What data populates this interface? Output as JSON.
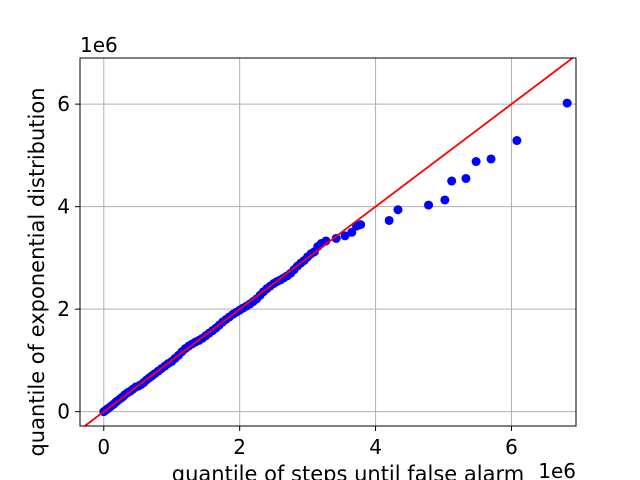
{
  "chart_data": {
    "type": "scatter",
    "title": "",
    "xlabel": "quantile of steps until false alarm",
    "ylabel": "quantile of exponential distribution",
    "x_offset_text": "1e6",
    "y_offset_text": "1e6",
    "xlim": [
      -0.35,
      6.95
    ],
    "ylim": [
      -0.28,
      6.9
    ],
    "x_ticks": [
      0,
      2,
      4,
      6
    ],
    "y_ticks": [
      0,
      2,
      4,
      6
    ],
    "x_tick_labels": [
      "0",
      "2",
      "4",
      "6"
    ],
    "y_tick_labels": [
      "0",
      "2",
      "4",
      "6"
    ],
    "scale_note": "values in units of 1e6",
    "grid": true,
    "point_color": "#0000ff",
    "line_color": "#ff0000",
    "series": [
      {
        "kind": "scatter",
        "points": [
          [
            0.0,
            0.0
          ],
          [
            0.03,
            0.03
          ],
          [
            0.06,
            0.06
          ],
          [
            0.09,
            0.09
          ],
          [
            0.12,
            0.12
          ],
          [
            0.15,
            0.15
          ],
          [
            0.18,
            0.19
          ],
          [
            0.21,
            0.22
          ],
          [
            0.25,
            0.26
          ],
          [
            0.28,
            0.29
          ],
          [
            0.31,
            0.33
          ],
          [
            0.35,
            0.37
          ],
          [
            0.39,
            0.4
          ],
          [
            0.43,
            0.44
          ],
          [
            0.47,
            0.48
          ],
          [
            0.51,
            0.5
          ],
          [
            0.55,
            0.53
          ],
          [
            0.59,
            0.57
          ],
          [
            0.63,
            0.62
          ],
          [
            0.67,
            0.66
          ],
          [
            0.71,
            0.7
          ],
          [
            0.75,
            0.74
          ],
          [
            0.8,
            0.79
          ],
          [
            0.85,
            0.84
          ],
          [
            0.9,
            0.89
          ],
          [
            0.95,
            0.94
          ],
          [
            1.0,
            0.98
          ],
          [
            1.05,
            1.04
          ],
          [
            1.1,
            1.1
          ],
          [
            1.15,
            1.17
          ],
          [
            1.2,
            1.23
          ],
          [
            1.25,
            1.28
          ],
          [
            1.3,
            1.32
          ],
          [
            1.35,
            1.36
          ],
          [
            1.4,
            1.39
          ],
          [
            1.45,
            1.43
          ],
          [
            1.5,
            1.48
          ],
          [
            1.55,
            1.53
          ],
          [
            1.6,
            1.58
          ],
          [
            1.65,
            1.63
          ],
          [
            1.7,
            1.69
          ],
          [
            1.75,
            1.75
          ],
          [
            1.8,
            1.8
          ],
          [
            1.85,
            1.85
          ],
          [
            1.9,
            1.9
          ],
          [
            1.95,
            1.94
          ],
          [
            2.0,
            1.98
          ],
          [
            2.05,
            2.02
          ],
          [
            2.1,
            2.06
          ],
          [
            2.15,
            2.1
          ],
          [
            2.2,
            2.15
          ],
          [
            2.25,
            2.2
          ],
          [
            2.3,
            2.27
          ],
          [
            2.35,
            2.34
          ],
          [
            2.4,
            2.4
          ],
          [
            2.45,
            2.45
          ],
          [
            2.5,
            2.5
          ],
          [
            2.55,
            2.54
          ],
          [
            2.6,
            2.57
          ],
          [
            2.65,
            2.61
          ],
          [
            2.7,
            2.65
          ],
          [
            2.75,
            2.7
          ],
          [
            2.8,
            2.77
          ],
          [
            2.85,
            2.84
          ],
          [
            2.9,
            2.9
          ],
          [
            2.95,
            2.95
          ],
          [
            3.0,
            3.02
          ],
          [
            3.05,
            3.08
          ],
          [
            3.1,
            3.12
          ],
          [
            3.15,
            3.22
          ],
          [
            3.2,
            3.28
          ],
          [
            3.27,
            3.33
          ],
          [
            3.42,
            3.38
          ],
          [
            3.55,
            3.43
          ],
          [
            3.65,
            3.5
          ],
          [
            3.72,
            3.62
          ],
          [
            3.78,
            3.65
          ],
          [
            4.2,
            3.73
          ],
          [
            4.33,
            3.94
          ],
          [
            4.78,
            4.03
          ],
          [
            5.02,
            4.13
          ],
          [
            5.12,
            4.5
          ],
          [
            5.33,
            4.55
          ],
          [
            5.48,
            4.88
          ],
          [
            5.7,
            4.93
          ],
          [
            6.08,
            5.29
          ],
          [
            6.82,
            6.02
          ]
        ]
      },
      {
        "kind": "line",
        "points": [
          [
            -0.35,
            -0.35
          ],
          [
            6.95,
            6.95
          ]
        ]
      }
    ]
  }
}
